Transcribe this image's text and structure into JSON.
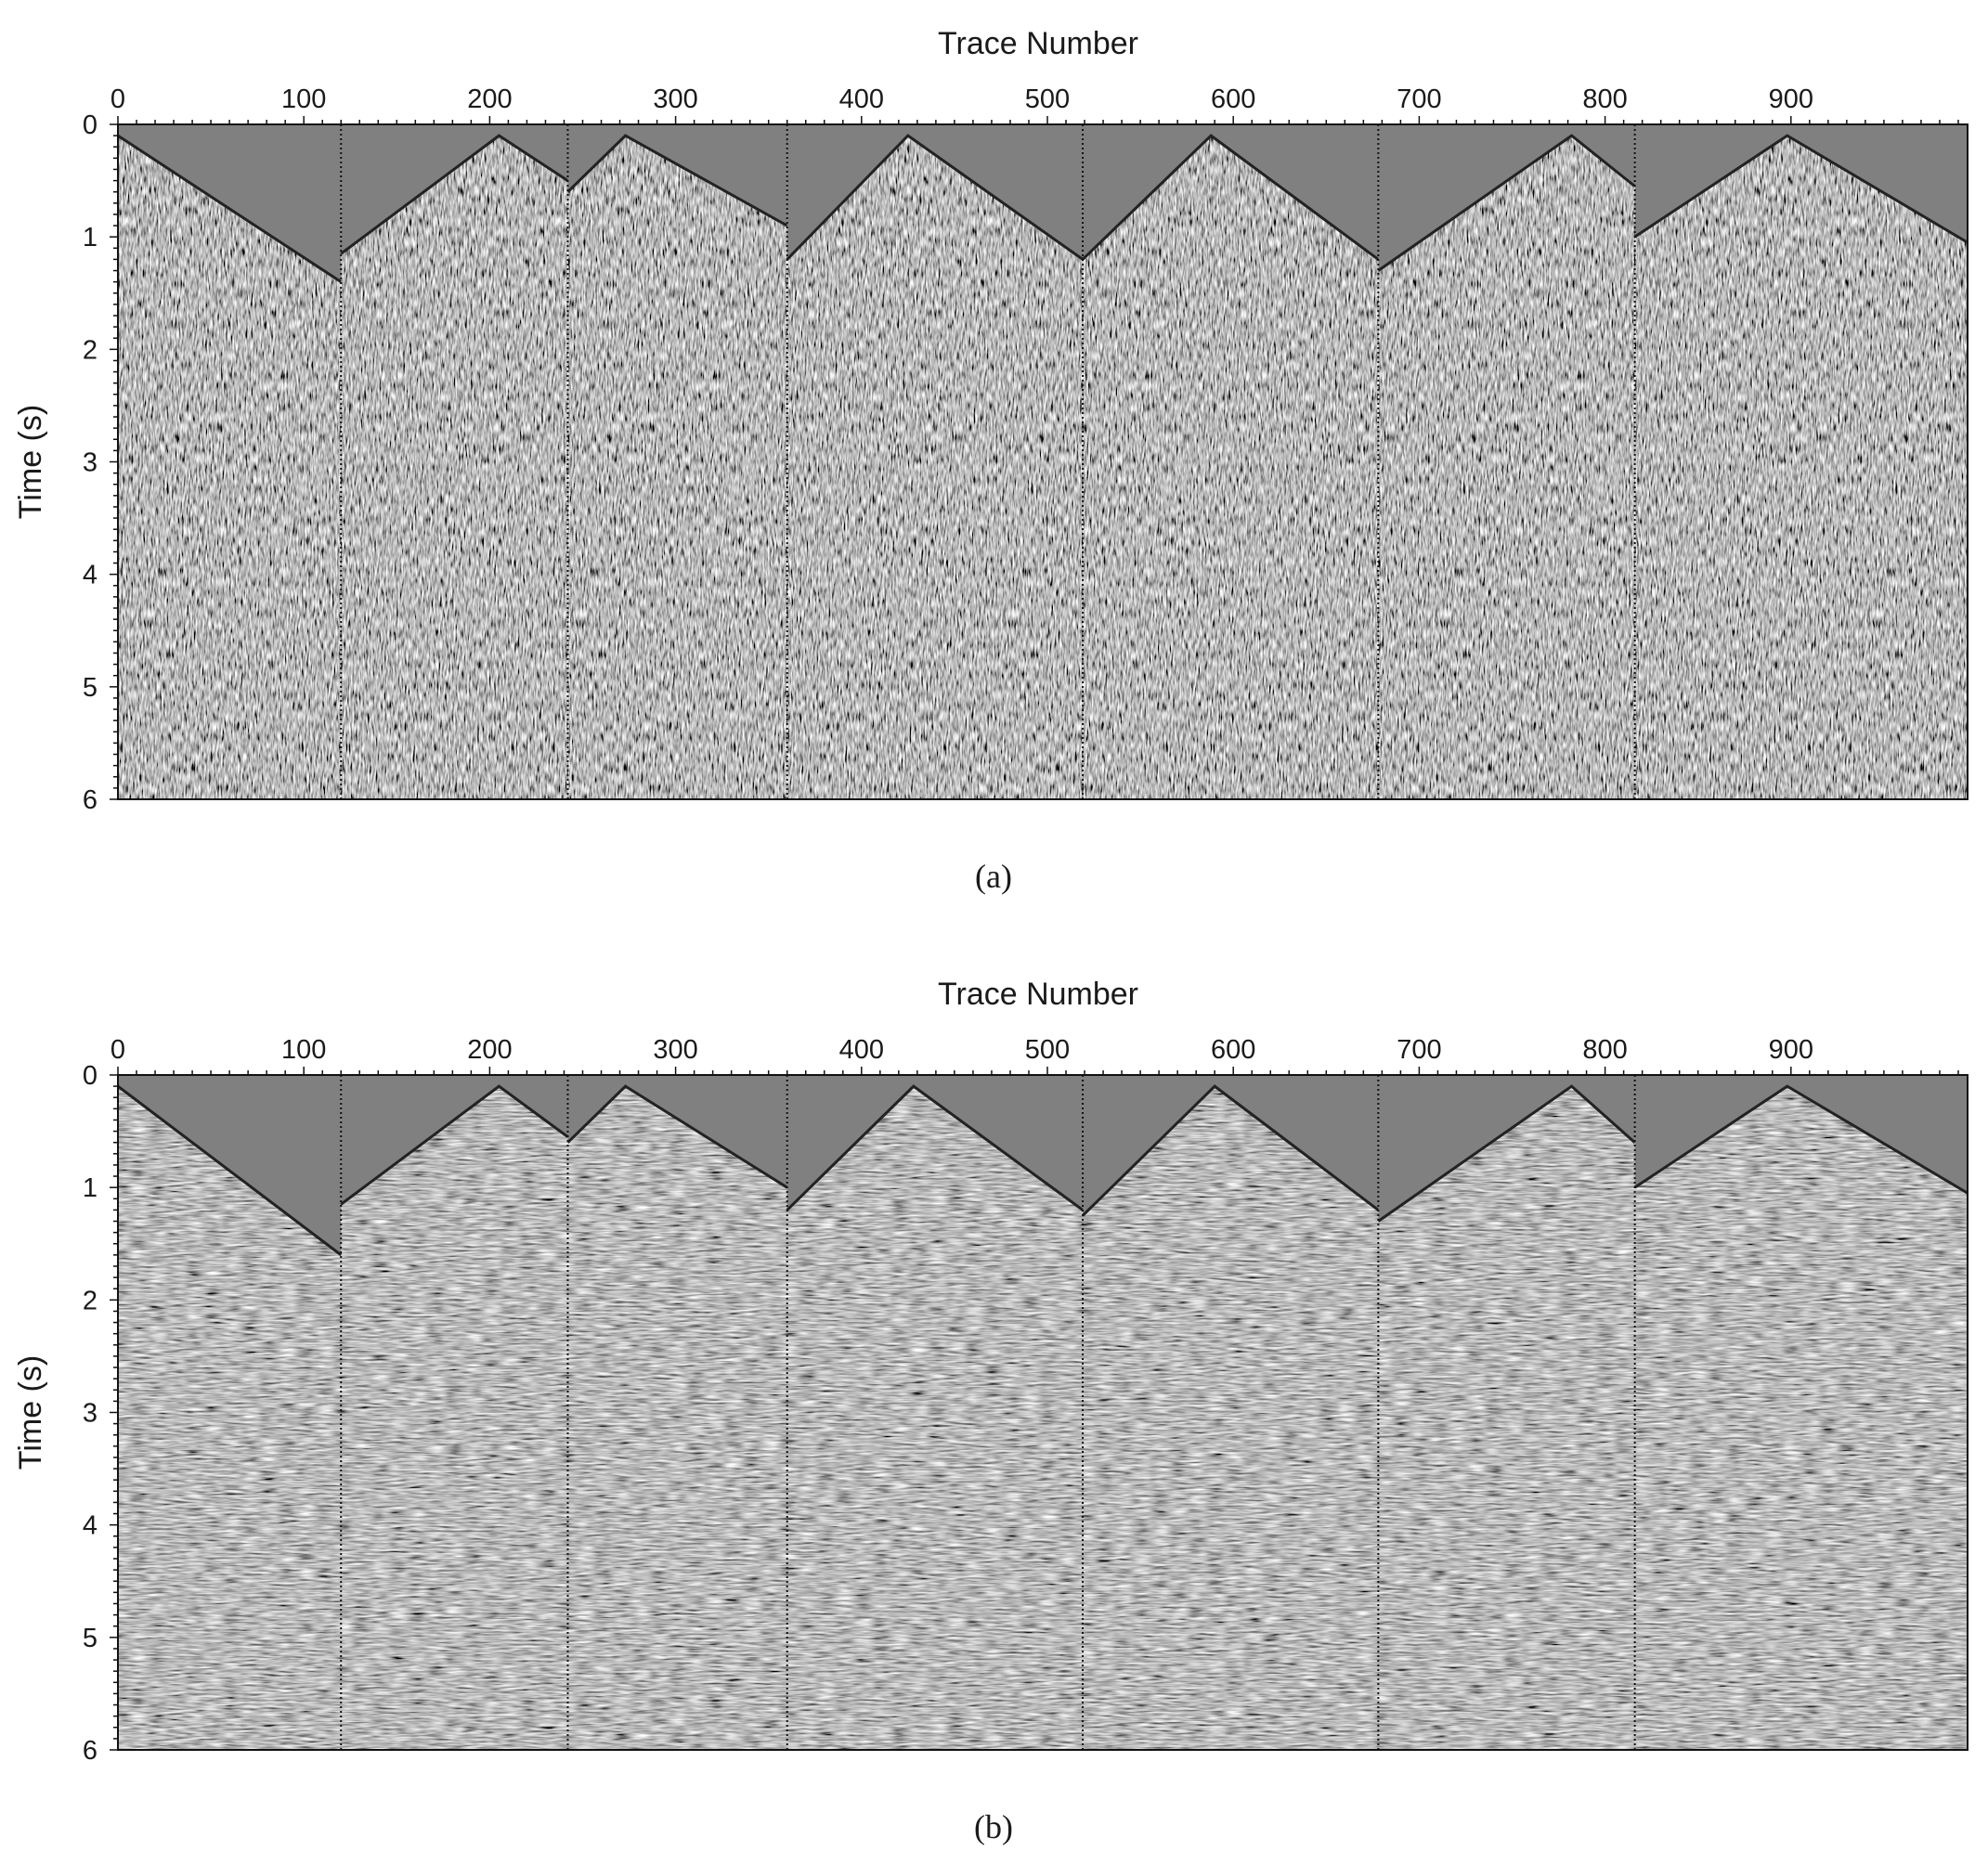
{
  "figure": {
    "caption_a": "(a)",
    "caption_b": "(b)"
  },
  "chart_data": [
    {
      "type": "heatmap",
      "panel": "a",
      "description_kind": "seismic shot gathers (raw, noisy)",
      "xlabel": "Trace Number",
      "ylabel": "Time (s)",
      "xlim": [
        0,
        995
      ],
      "ylim": [
        6,
        0
      ],
      "x_axis_position": "top",
      "x_ticks": [
        0,
        100,
        200,
        300,
        400,
        500,
        600,
        700,
        800,
        900
      ],
      "y_ticks": [
        0,
        1,
        2,
        3,
        4,
        5,
        6
      ],
      "gather_boundaries": [
        120,
        242,
        360,
        519,
        678,
        816
      ],
      "gathers": [
        {
          "start": 0,
          "end": 120,
          "apex_trace": 0,
          "apex_time": 0.1,
          "edge_time_left": 0.1,
          "edge_time_right": 1.4
        },
        {
          "start": 120,
          "end": 242,
          "apex_trace": 205,
          "apex_time": 0.1,
          "edge_time_left": 1.15,
          "edge_time_right": 0.5
        },
        {
          "start": 242,
          "end": 360,
          "apex_trace": 273,
          "apex_time": 0.1,
          "edge_time_left": 0.6,
          "edge_time_right": 0.9
        },
        {
          "start": 360,
          "end": 519,
          "apex_trace": 425,
          "apex_time": 0.1,
          "edge_time_left": 1.2,
          "edge_time_right": 1.2
        },
        {
          "start": 519,
          "end": 678,
          "apex_trace": 588,
          "apex_time": 0.1,
          "edge_time_left": 1.2,
          "edge_time_right": 1.2
        },
        {
          "start": 678,
          "end": 816,
          "apex_trace": 782,
          "apex_time": 0.1,
          "edge_time_left": 1.3,
          "edge_time_right": 0.55
        },
        {
          "start": 816,
          "end": 995,
          "apex_trace": 898,
          "apex_time": 0.1,
          "edge_time_left": 1.0,
          "edge_time_right": 1.05
        }
      ],
      "colormap": "gray"
    },
    {
      "type": "heatmap",
      "panel": "b",
      "description_kind": "seismic shot gathers (denoised)",
      "xlabel": "Trace Number",
      "ylabel": "Time (s)",
      "xlim": [
        0,
        995
      ],
      "ylim": [
        6,
        0
      ],
      "x_axis_position": "top",
      "x_ticks": [
        0,
        100,
        200,
        300,
        400,
        500,
        600,
        700,
        800,
        900
      ],
      "y_ticks": [
        0,
        1,
        2,
        3,
        4,
        5,
        6
      ],
      "gather_boundaries": [
        120,
        242,
        360,
        519,
        678,
        816
      ],
      "gathers": [
        {
          "start": 0,
          "end": 120,
          "apex_trace": 0,
          "apex_time": 0.1,
          "edge_time_left": 0.1,
          "edge_time_right": 1.6
        },
        {
          "start": 120,
          "end": 242,
          "apex_trace": 205,
          "apex_time": 0.1,
          "edge_time_left": 1.15,
          "edge_time_right": 0.55
        },
        {
          "start": 242,
          "end": 360,
          "apex_trace": 273,
          "apex_time": 0.1,
          "edge_time_left": 0.6,
          "edge_time_right": 1.0
        },
        {
          "start": 360,
          "end": 519,
          "apex_trace": 428,
          "apex_time": 0.1,
          "edge_time_left": 1.2,
          "edge_time_right": 1.2
        },
        {
          "start": 519,
          "end": 678,
          "apex_trace": 590,
          "apex_time": 0.1,
          "edge_time_left": 1.25,
          "edge_time_right": 1.2
        },
        {
          "start": 678,
          "end": 816,
          "apex_trace": 782,
          "apex_time": 0.1,
          "edge_time_left": 1.3,
          "edge_time_right": 0.6
        },
        {
          "start": 816,
          "end": 995,
          "apex_trace": 898,
          "apex_time": 0.1,
          "edge_time_left": 1.0,
          "edge_time_right": 1.05
        }
      ],
      "colormap": "gray"
    }
  ]
}
